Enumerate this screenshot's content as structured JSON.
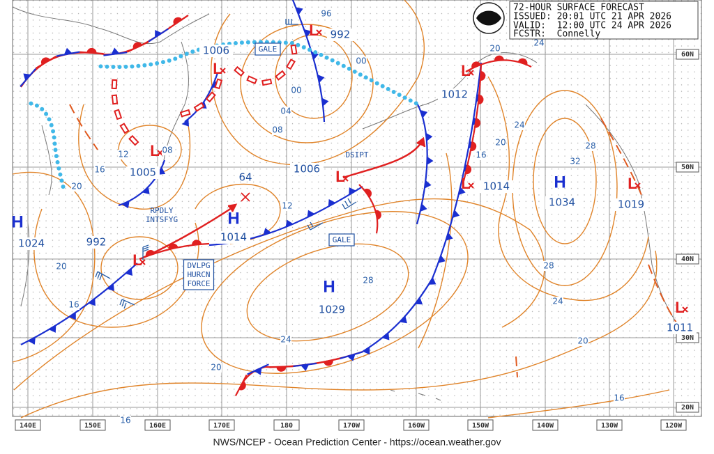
{
  "header": {
    "lines": [
      "72-HOUR SURFACE FORECAST",
      "ISSUED: 20:01 UTC 21 APR 2026",
      "VALID:  12:00 UTC 24 APR 2026",
      "FCSTR:  Connelly"
    ]
  },
  "footer": "NWS/NCEP - Ocean Prediction Center - https://ocean.weather.gov",
  "lon_labels": [
    "140E",
    "150E",
    "160E",
    "170E",
    "180",
    "170W",
    "160W",
    "150W",
    "140W",
    "130W",
    "120W"
  ],
  "lat_labels": [
    "60N",
    "50N",
    "40N",
    "30N",
    "20N"
  ],
  "centers": [
    {
      "type": "H",
      "pressure": "1024"
    },
    {
      "type": "L",
      "pressure": "1005"
    },
    {
      "type": "L",
      "pressure": "1006"
    },
    {
      "type": "L",
      "pressure": "992"
    },
    {
      "type": "L",
      "pressure": "992"
    },
    {
      "type": "L",
      "pressure": "1006"
    },
    {
      "type": "H",
      "pressure": "1014"
    },
    {
      "type": "H",
      "pressure": "1029"
    },
    {
      "type": "L",
      "pressure": "1012"
    },
    {
      "type": "L",
      "pressure": "1014"
    },
    {
      "type": "H",
      "pressure": "1034"
    },
    {
      "type": "L",
      "pressure": "1019"
    },
    {
      "type": "L",
      "pressure": "1011"
    }
  ],
  "isobar_labels": [
    "96",
    "00",
    "00",
    "04",
    "08",
    "12",
    "08",
    "16",
    "20",
    "12",
    "20",
    "16",
    "28",
    "24",
    "20",
    "16",
    "16",
    "20",
    "24",
    "28",
    "32",
    "28",
    "24",
    "20",
    "16",
    "20",
    "24"
  ],
  "annotations": [
    {
      "lines": [
        "GALE"
      ]
    },
    {
      "lines": [
        "DSIPT"
      ]
    },
    {
      "lines": [
        "64"
      ]
    },
    {
      "lines": [
        "RPDLY",
        "INTSFYG"
      ]
    },
    {
      "lines": [
        "GALE"
      ]
    },
    {
      "lines": [
        "DVLPG",
        "HURCN",
        "FORCE"
      ]
    }
  ]
}
